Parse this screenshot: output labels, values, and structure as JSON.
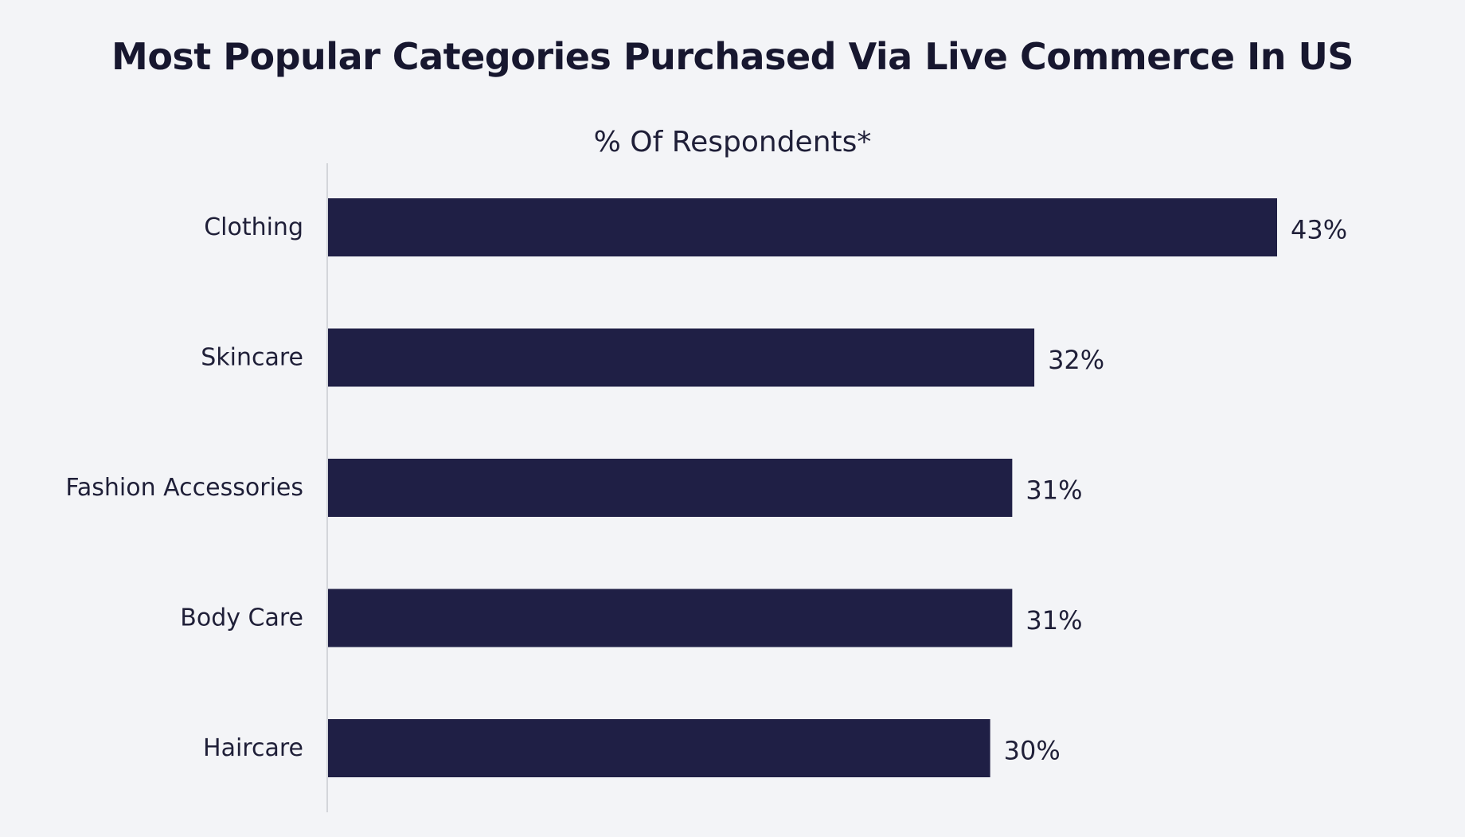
{
  "chart_data": {
    "type": "bar",
    "orientation": "horizontal",
    "title": "Most Popular Categories Purchased Via Live Commerce In US",
    "subtitle": "% Of Respondents*",
    "categories": [
      "Clothing",
      "Skincare",
      "Fashion Accessories",
      "Body Care",
      "Haircare"
    ],
    "values": [
      43,
      32,
      31,
      31,
      30
    ],
    "value_labels": [
      "43%",
      "32%",
      "31%",
      "31%",
      "30%"
    ],
    "unit": "%",
    "xlim": [
      0,
      43
    ],
    "grid": false,
    "legend": "none",
    "bar_color": "#1f1f45",
    "axis_color": "#d3d5da",
    "background_color": "#f3f4f7"
  }
}
